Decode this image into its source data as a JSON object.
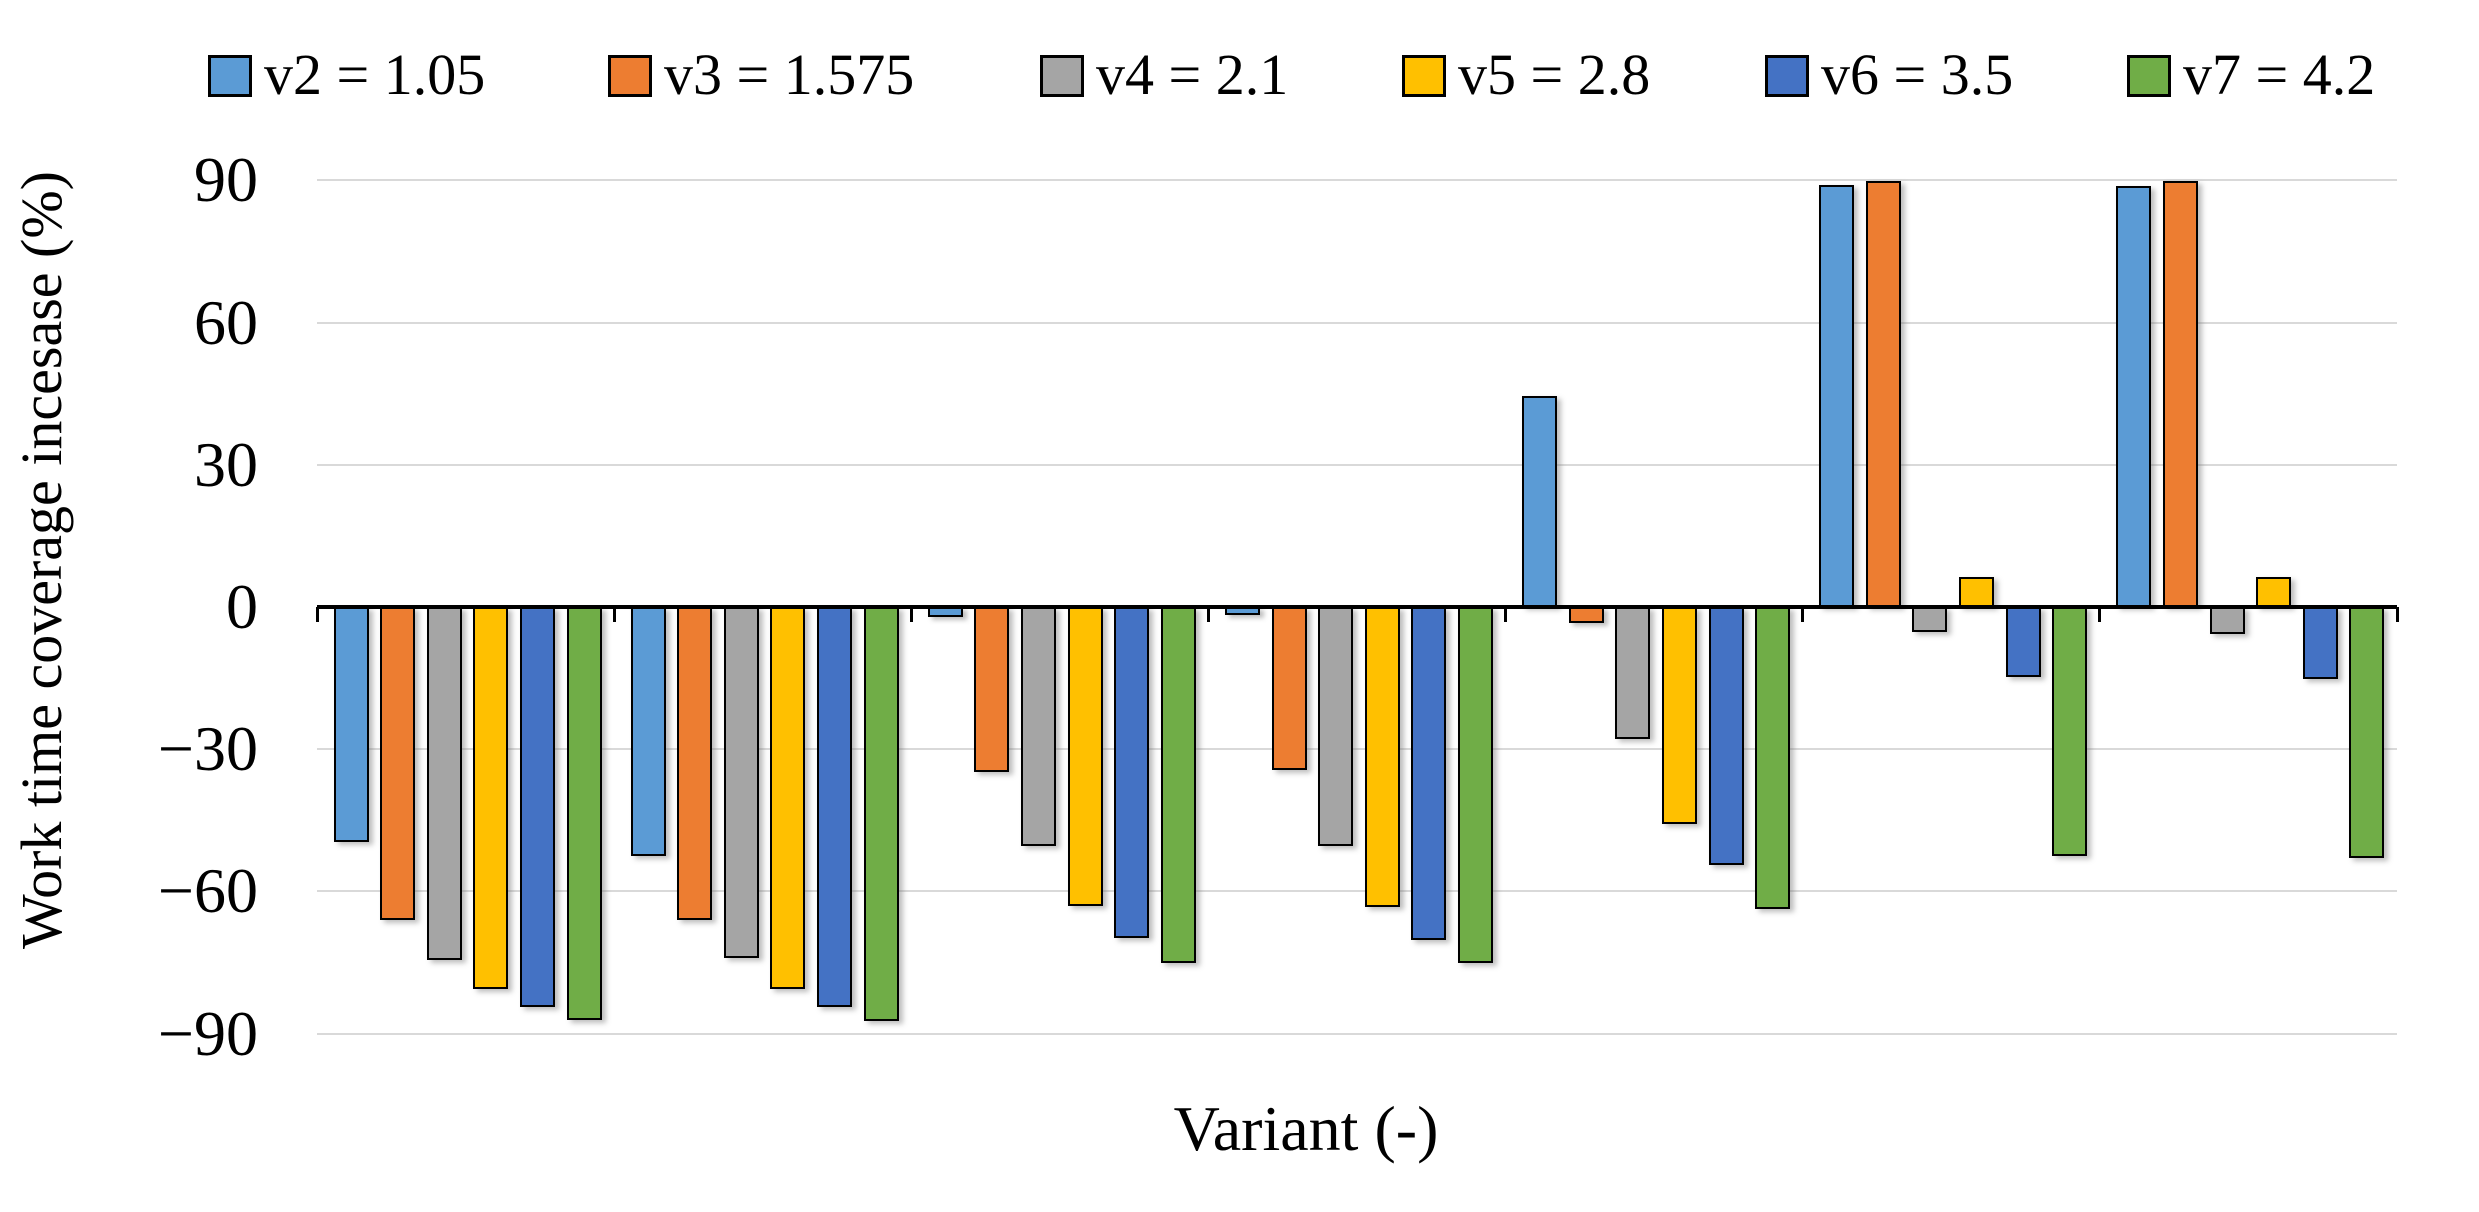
{
  "chart_data": {
    "type": "bar",
    "title": "",
    "xlabel": "Variant (-)",
    "ylabel": "Work time coverage incesase (%)",
    "ylim": [
      -90,
      90
    ],
    "ytick_interval": 30,
    "yticks": [
      90,
      60,
      30,
      0,
      -30,
      -60,
      -90
    ],
    "ytick_labels": [
      "90",
      "60",
      "30",
      "0",
      "−30",
      "−60",
      "−90"
    ],
    "grid": "horizontal gridlines, light gray",
    "legend_position": "top",
    "num_groups": 7,
    "categories": [
      "",
      "",
      "",
      "",
      "",
      "",
      ""
    ],
    "series": [
      {
        "name": "v2 = 1.05",
        "color": "#5B9BD5",
        "values": [
          -49.5,
          -52.6,
          -2.2,
          -1.7,
          44.5,
          89.1,
          88.8
        ]
      },
      {
        "name": "v3 = 1.575",
        "color": "#ED7D31",
        "values": [
          -66.0,
          -66.0,
          -34.9,
          -34.4,
          -3.4,
          90.0,
          89.9
        ]
      },
      {
        "name": "v4 = 2.1",
        "color": "#A5A5A5",
        "values": [
          -74.4,
          -74.0,
          -50.4,
          -50.5,
          -27.8,
          -5.2,
          -5.7
        ]
      },
      {
        "name": "v5 = 2.8",
        "color": "#FFC000",
        "values": [
          -80.7,
          -80.7,
          -63.0,
          -63.2,
          -45.8,
          6.4,
          6.4
        ]
      },
      {
        "name": "v6 = 3.5",
        "color": "#4472C4",
        "values": [
          -84.5,
          -84.5,
          -69.9,
          -70.2,
          -54.5,
          -14.8,
          -15.2
        ]
      },
      {
        "name": "v7 = 4.2",
        "color": "#70AD47",
        "values": [
          -87.1,
          -87.4,
          -75.1,
          -75.1,
          -63.7,
          -52.6,
          -52.9
        ]
      }
    ]
  }
}
